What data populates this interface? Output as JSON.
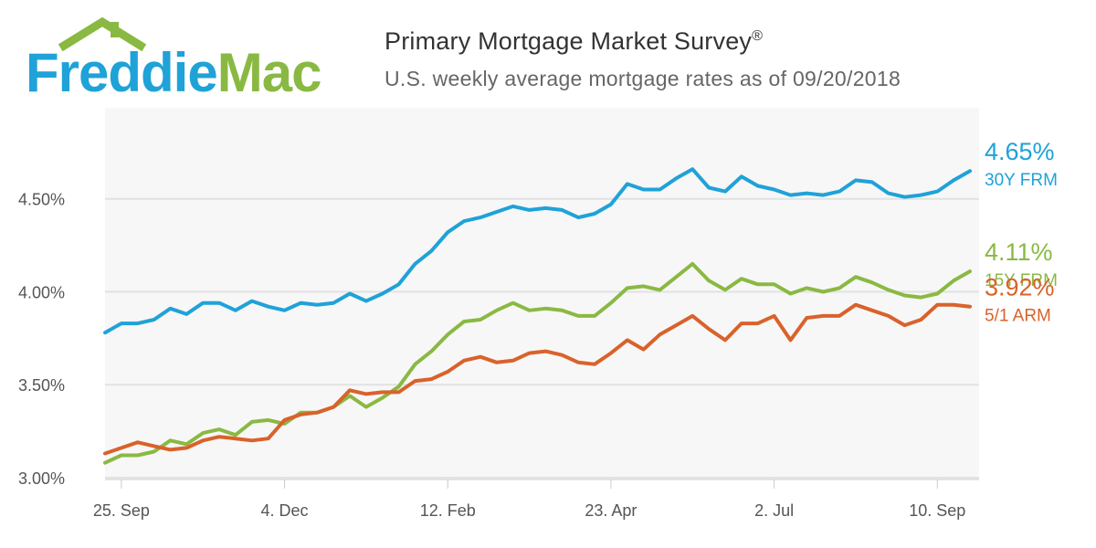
{
  "header": {
    "logo_text": "FreddieMac",
    "title": "Primary Mortgage Market Survey",
    "title_mark": "®",
    "subtitle": "U.S. weekly average mortgage rates as of 09/20/2018"
  },
  "colors": {
    "logo_blue": "#1fa2d8",
    "logo_green": "#8ab943",
    "series_30y": "#1fa2d8",
    "series_15y": "#8ab943",
    "series_arm": "#d9622b",
    "plot_bg": "#f7f7f7",
    "grid": "#e2e2e2"
  },
  "chart_data": {
    "type": "line",
    "title": "Primary Mortgage Market Survey",
    "subtitle": "U.S. weekly average mortgage rates as of 09/20/2018",
    "xlabel": "",
    "ylabel": "",
    "ylim": [
      2.99,
      4.99
    ],
    "yticks": [
      3.0,
      3.5,
      4.0,
      4.5
    ],
    "ytick_labels": [
      "3.00%",
      "3.50%",
      "4.00%",
      "4.50%"
    ],
    "xticks": [
      1,
      11,
      21,
      31,
      41,
      51
    ],
    "xtick_labels": [
      "25. Sep",
      "4. Dec",
      "12. Feb",
      "23. Apr",
      "2. Jul",
      "10. Sep"
    ],
    "legend": "right-end labels",
    "grid": true,
    "series": [
      {
        "name": "30Y FRM",
        "end_label": "4.65%",
        "color_key": "series_30y",
        "values": [
          3.78,
          3.83,
          3.83,
          3.85,
          3.91,
          3.88,
          3.94,
          3.94,
          3.9,
          3.95,
          3.92,
          3.9,
          3.94,
          3.93,
          3.94,
          3.99,
          3.95,
          3.99,
          4.04,
          4.15,
          4.22,
          4.32,
          4.38,
          4.4,
          4.43,
          4.46,
          4.44,
          4.45,
          4.44,
          4.4,
          4.42,
          4.47,
          4.58,
          4.55,
          4.55,
          4.61,
          4.66,
          4.56,
          4.54,
          4.62,
          4.57,
          4.55,
          4.52,
          4.53,
          4.52,
          4.54,
          4.6,
          4.59,
          4.53,
          4.51,
          4.52,
          4.54,
          4.6,
          4.65
        ]
      },
      {
        "name": "15Y FRM",
        "end_label": "4.11%",
        "color_key": "series_15y",
        "values": [
          3.08,
          3.12,
          3.12,
          3.14,
          3.2,
          3.18,
          3.24,
          3.26,
          3.23,
          3.3,
          3.31,
          3.29,
          3.35,
          3.35,
          3.38,
          3.44,
          3.38,
          3.43,
          3.49,
          3.61,
          3.68,
          3.77,
          3.84,
          3.85,
          3.9,
          3.94,
          3.9,
          3.91,
          3.9,
          3.87,
          3.87,
          3.94,
          4.02,
          4.03,
          4.01,
          4.08,
          4.15,
          4.06,
          4.01,
          4.07,
          4.04,
          4.04,
          3.99,
          4.02,
          4.0,
          4.02,
          4.08,
          4.05,
          4.01,
          3.98,
          3.97,
          3.99,
          4.06,
          4.11
        ]
      },
      {
        "name": "5/1 ARM",
        "end_label": "3.92%",
        "color_key": "series_arm",
        "values": [
          3.13,
          3.16,
          3.19,
          3.17,
          3.15,
          3.16,
          3.2,
          3.22,
          3.21,
          3.2,
          3.21,
          3.31,
          3.34,
          3.35,
          3.38,
          3.47,
          3.45,
          3.46,
          3.46,
          3.52,
          3.53,
          3.57,
          3.63,
          3.65,
          3.62,
          3.63,
          3.67,
          3.68,
          3.66,
          3.62,
          3.61,
          3.67,
          3.74,
          3.69,
          3.77,
          3.82,
          3.87,
          3.8,
          3.74,
          3.83,
          3.83,
          3.87,
          3.74,
          3.86,
          3.87,
          3.87,
          3.93,
          3.9,
          3.87,
          3.82,
          3.85,
          3.93,
          3.93,
          3.92
        ]
      }
    ]
  }
}
